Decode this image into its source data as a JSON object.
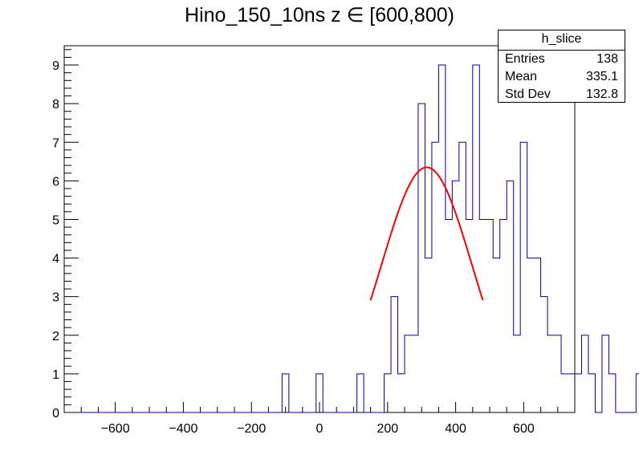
{
  "chart_data": {
    "type": "histogram",
    "title": "Hino_150_10ns z  ∈ [600,800)",
    "xlim": [
      -750,
      750
    ],
    "ylim": [
      0,
      9.5
    ],
    "bin_width": 20,
    "bin_start": -710,
    "counts": [
      0,
      0,
      0,
      0,
      0,
      0,
      0,
      0,
      0,
      0,
      0,
      0,
      0,
      0,
      0,
      0,
      0,
      0,
      0,
      0,
      0,
      0,
      0,
      0,
      0,
      0,
      0,
      0,
      0,
      0,
      1,
      0,
      0,
      0,
      0,
      1,
      0,
      0,
      0,
      0,
      0,
      1,
      0,
      0,
      0,
      1,
      3,
      1,
      2,
      2,
      8,
      4,
      7,
      9,
      5,
      6,
      7,
      5,
      9,
      5,
      5,
      4,
      5,
      6,
      2,
      7,
      4,
      4,
      3,
      2,
      2,
      1,
      1,
      1,
      2,
      1,
      0,
      2,
      1,
      0,
      0,
      0,
      1,
      0
    ],
    "x_ticks": [
      "−600",
      "−400",
      "−200",
      "0",
      "200",
      "400",
      "600"
    ],
    "x_tick_values": [
      -600,
      -400,
      -200,
      0,
      200,
      400,
      600
    ],
    "y_ticks": [
      "0",
      "1",
      "2",
      "3",
      "4",
      "5",
      "6",
      "7",
      "8",
      "9"
    ],
    "y_tick_values": [
      0,
      1,
      2,
      3,
      4,
      5,
      6,
      7,
      8,
      9
    ],
    "fit": {
      "type": "gaussian",
      "constant": 6.35,
      "mean": 315,
      "sigma": 132,
      "x_range": [
        150,
        480
      ],
      "color": "#ff0000"
    },
    "histogram_color": "#000099",
    "grid": false,
    "legend": "top-right"
  },
  "stats": {
    "name": "h_slice",
    "rows": [
      {
        "label": "Entries",
        "value": "138"
      },
      {
        "label": "Mean",
        "value": "335.1"
      },
      {
        "label": "Std Dev",
        "value": "132.8"
      }
    ]
  }
}
